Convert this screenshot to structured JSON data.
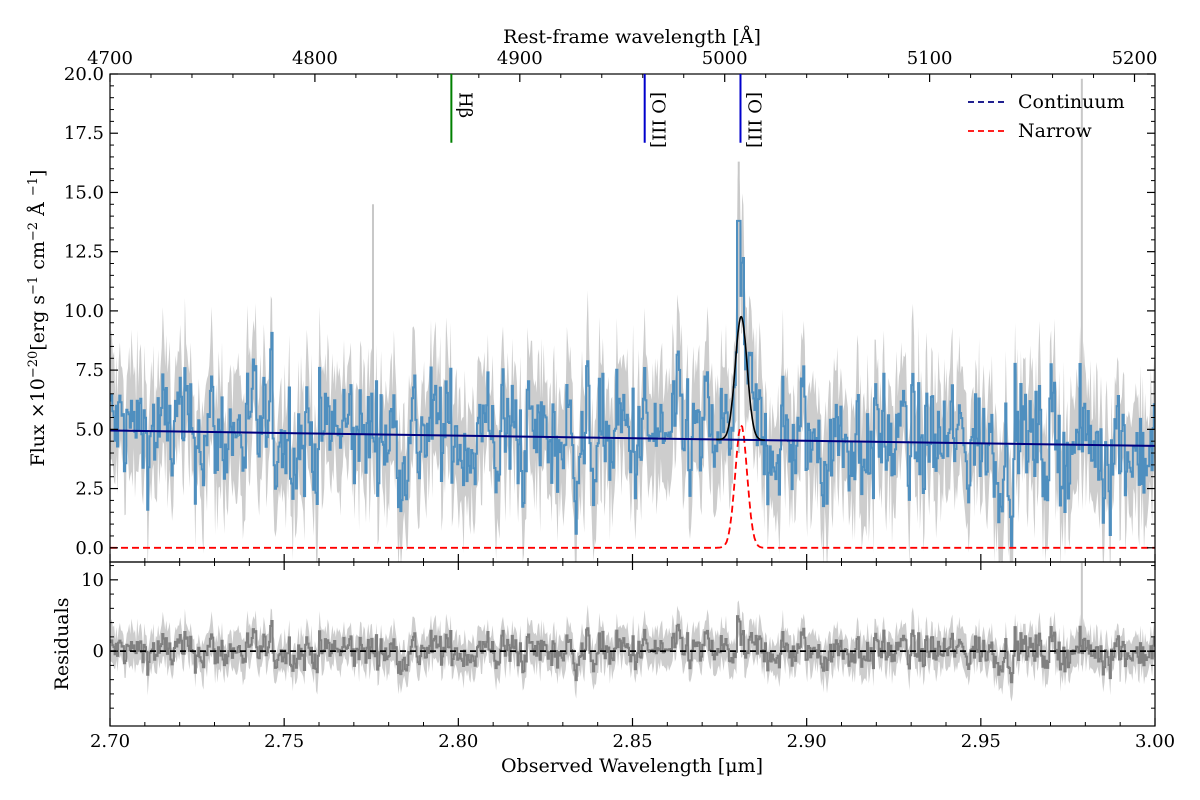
{
  "chart_data": [
    {
      "type": "line",
      "panel": "main-spectrum",
      "title": "",
      "top_axis_label": "Rest-frame wavelength [Å]",
      "top_ticks": [
        "4700",
        "4800",
        "4900",
        "5000",
        "5100",
        "5200"
      ],
      "top_tick_values": [
        4700,
        4800,
        4900,
        5000,
        5100,
        5200
      ],
      "top_xlim": [
        4700,
        5210
      ],
      "ylabel": "Flux ×10⁻²⁰[erg s⁻¹ cm⁻² Å ⁻¹]",
      "ylabel_parts": {
        "pre": "Flux ×10",
        "sup1": "−20",
        "mid1": "[erg s",
        "sup2": "−1",
        "mid2": " cm",
        "sup3": "−2",
        "mid3": " Å ",
        "sup4": "−1",
        "post": "]"
      },
      "ylim": [
        -0.6,
        20
      ],
      "y_ticks": [
        "0.0",
        "2.5",
        "5.0",
        "7.5",
        "10.0",
        "12.5",
        "15.0",
        "17.5",
        "20.0"
      ],
      "y_tick_values": [
        0,
        2.5,
        5,
        7.5,
        10,
        12.5,
        15,
        17.5,
        20
      ],
      "xlim": [
        2.7,
        3.0
      ],
      "legend_position": "top-right",
      "legend": [
        {
          "label": "Continuum",
          "color": "#000080",
          "style": "dashed"
        },
        {
          "label": "Narrow",
          "color": "#ff0000",
          "style": "dashed"
        }
      ],
      "line_markers": [
        {
          "label": "Hβ",
          "x": 2.798,
          "color": "#008000"
        },
        {
          "label": "[O III]",
          "x": 2.8535,
          "color": "#0000cc"
        },
        {
          "label": "[O III]",
          "x": 2.881,
          "color": "#0000cc"
        }
      ],
      "series": [
        {
          "name": "Observed flux",
          "color": "#4f8fbf",
          "style": "step",
          "mean": 4.7,
          "scatter": 2.3
        },
        {
          "name": "Flux uncertainty",
          "color": "#c8c8c8",
          "style": "band"
        },
        {
          "name": "Continuum",
          "color": "#000080",
          "style": "solid",
          "x": [
            2.7,
            3.0
          ],
          "y": [
            4.95,
            4.3
          ]
        },
        {
          "name": "Narrow",
          "color": "#ff0000",
          "style": "dashed",
          "baseline": 0.0,
          "center": 2.8812,
          "amplitude": 5.2,
          "sigma": 0.0017
        },
        {
          "name": "Total model",
          "color": "#000000",
          "style": "solid",
          "center": 2.8812,
          "amplitude": 5.2,
          "sigma": 0.0017
        }
      ]
    },
    {
      "type": "line",
      "panel": "residuals",
      "ylabel": "Residuals",
      "xlabel": "Observed Wavelength [μm]",
      "xlim": [
        2.7,
        3.0
      ],
      "ylim": [
        -10.5,
        12.5
      ],
      "y_ticks": [
        "0",
        "10"
      ],
      "y_tick_values": [
        0,
        10
      ],
      "x_ticks": [
        "2.70",
        "2.75",
        "2.80",
        "2.85",
        "2.90",
        "2.95",
        "3.00"
      ],
      "x_tick_values": [
        2.7,
        2.75,
        2.8,
        2.85,
        2.9,
        2.95,
        3.0
      ],
      "series": [
        {
          "name": "Residuals",
          "color": "#808080",
          "style": "step",
          "scatter": 2.0
        },
        {
          "name": "Residual uncertainty",
          "color": "#c8c8c8",
          "style": "band"
        },
        {
          "name": "Zero line",
          "color": "#000000",
          "style": "dashed",
          "y": 0
        }
      ]
    }
  ]
}
